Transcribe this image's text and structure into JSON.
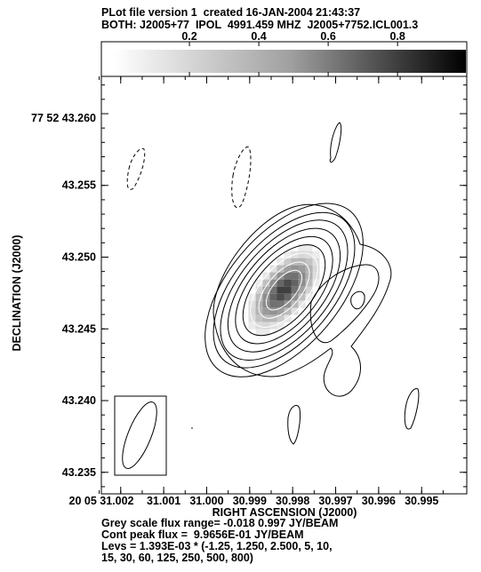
{
  "header": {
    "line1": "PLot file version 1  created 16-JAN-2004 21:43:37",
    "line2": "BOTH: J2005+77  IPOL  4991.459 MHZ  J2005+7752.ICL001.3"
  },
  "colorbar": {
    "ticks": [
      "0.2",
      "0.4",
      "0.6",
      "0.8"
    ],
    "tick_values": [
      0.2,
      0.4,
      0.6,
      0.8
    ],
    "range": [
      -0.018,
      0.997
    ]
  },
  "chart_data": {
    "type": "heatmap",
    "xlabel": "RIGHT ASCENSION (J2000)",
    "ylabel": "DECLINATION (J2000)",
    "x_first_label": "20 05 31.002",
    "x_ticks": [
      {
        "label": "31.001",
        "value": 31.001
      },
      {
        "label": "31.000",
        "value": 31.0
      },
      {
        "label": "30.999",
        "value": 30.999
      },
      {
        "label": "30.998",
        "value": 30.998
      },
      {
        "label": "30.997",
        "value": 30.997
      },
      {
        "label": "30.996",
        "value": 30.996
      },
      {
        "label": "30.995",
        "value": 30.995
      }
    ],
    "xlim": [
      31.00245,
      30.99395
    ],
    "y_first_label": "77 52 43.260",
    "y_ticks": [
      {
        "label": "43.255",
        "value": 43.255
      },
      {
        "label": "43.250",
        "value": 43.25
      },
      {
        "label": "43.245",
        "value": 43.245
      },
      {
        "label": "43.240",
        "value": 43.24
      },
      {
        "label": "43.235",
        "value": 43.235
      }
    ],
    "y_first_value": 43.26,
    "ylim": [
      43.2335,
      43.2626
    ],
    "grey_scale_range": [
      -0.018,
      0.997
    ],
    "grey_scale_unit": "JY/BEAM",
    "peak_flux": 0.99656,
    "contour_base": 0.001393,
    "contour_levels": [
      -1.25,
      1.25,
      2.5,
      5,
      10,
      15,
      30,
      60,
      125,
      250,
      500,
      800
    ],
    "source_center": {
      "ra": 30.9982,
      "dec": 43.2477
    },
    "beam": {
      "ra": 31.0013,
      "dec": 43.2375
    }
  },
  "captions": {
    "line1": "Grey scale flux range= -0.018 0.997 JY/BEAM",
    "line2": "Cont peak flux =  9.9656E-01 JY/BEAM",
    "line3": "Levs = 1.393E-03 * (-1.25, 1.250, 2.500, 5, 10,",
    "line4": "15, 30, 60, 125, 250, 500, 800)"
  }
}
